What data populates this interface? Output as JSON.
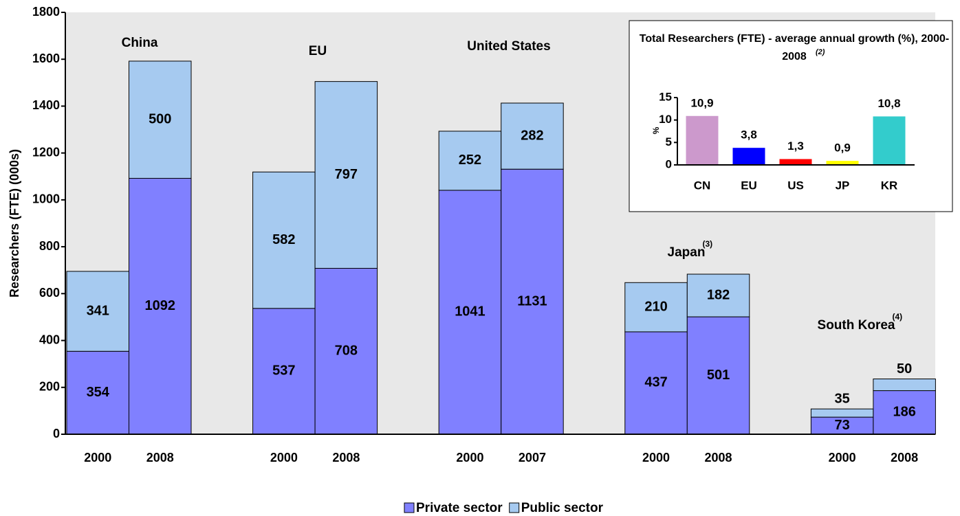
{
  "chart_data": [
    {
      "type": "stacked-bar",
      "categories": [
        "2000",
        "2008",
        "2000",
        "2008",
        "2000",
        "2007",
        "2000",
        "2008",
        "2000",
        "2008"
      ],
      "groups": [
        "China",
        "EU",
        "United States",
        "Japan",
        "South Korea"
      ],
      "group_notes": [
        null,
        null,
        null,
        "(3)",
        "(4)"
      ],
      "series": [
        {
          "name": "Private sector",
          "color": "#8080ff",
          "values": [
            354,
            1092,
            537,
            708,
            1041,
            1131,
            437,
            501,
            73,
            186
          ]
        },
        {
          "name": "Public sector",
          "color": "#a6caf0",
          "values": [
            341,
            500,
            582,
            797,
            252,
            282,
            210,
            182,
            35,
            50
          ]
        }
      ],
      "ylabel": "Researchers (FTE) (000s)",
      "ylim": [
        0,
        1800
      ],
      "yticks": [
        0,
        200,
        400,
        600,
        800,
        1000,
        1200,
        1400,
        1600,
        1800
      ],
      "legend": "bottom"
    },
    {
      "type": "bar",
      "title": "Total Researchers (FTE) - average annual growth (%), 2000-2008",
      "title_note": "(2)",
      "ylabel": "%",
      "categories": [
        "CN",
        "EU",
        "US",
        "JP",
        "KR"
      ],
      "values": [
        10.9,
        3.8,
        1.3,
        0.9,
        10.8
      ],
      "value_labels": [
        "10,9",
        "3,8",
        "1,3",
        "0,9",
        "10,8"
      ],
      "colors": [
        "#cc99cc",
        "#0000ff",
        "#ff0000",
        "#ffff00",
        "#33cccc"
      ],
      "ylim": [
        0,
        15
      ],
      "yticks": [
        0,
        5,
        10,
        15
      ]
    }
  ]
}
